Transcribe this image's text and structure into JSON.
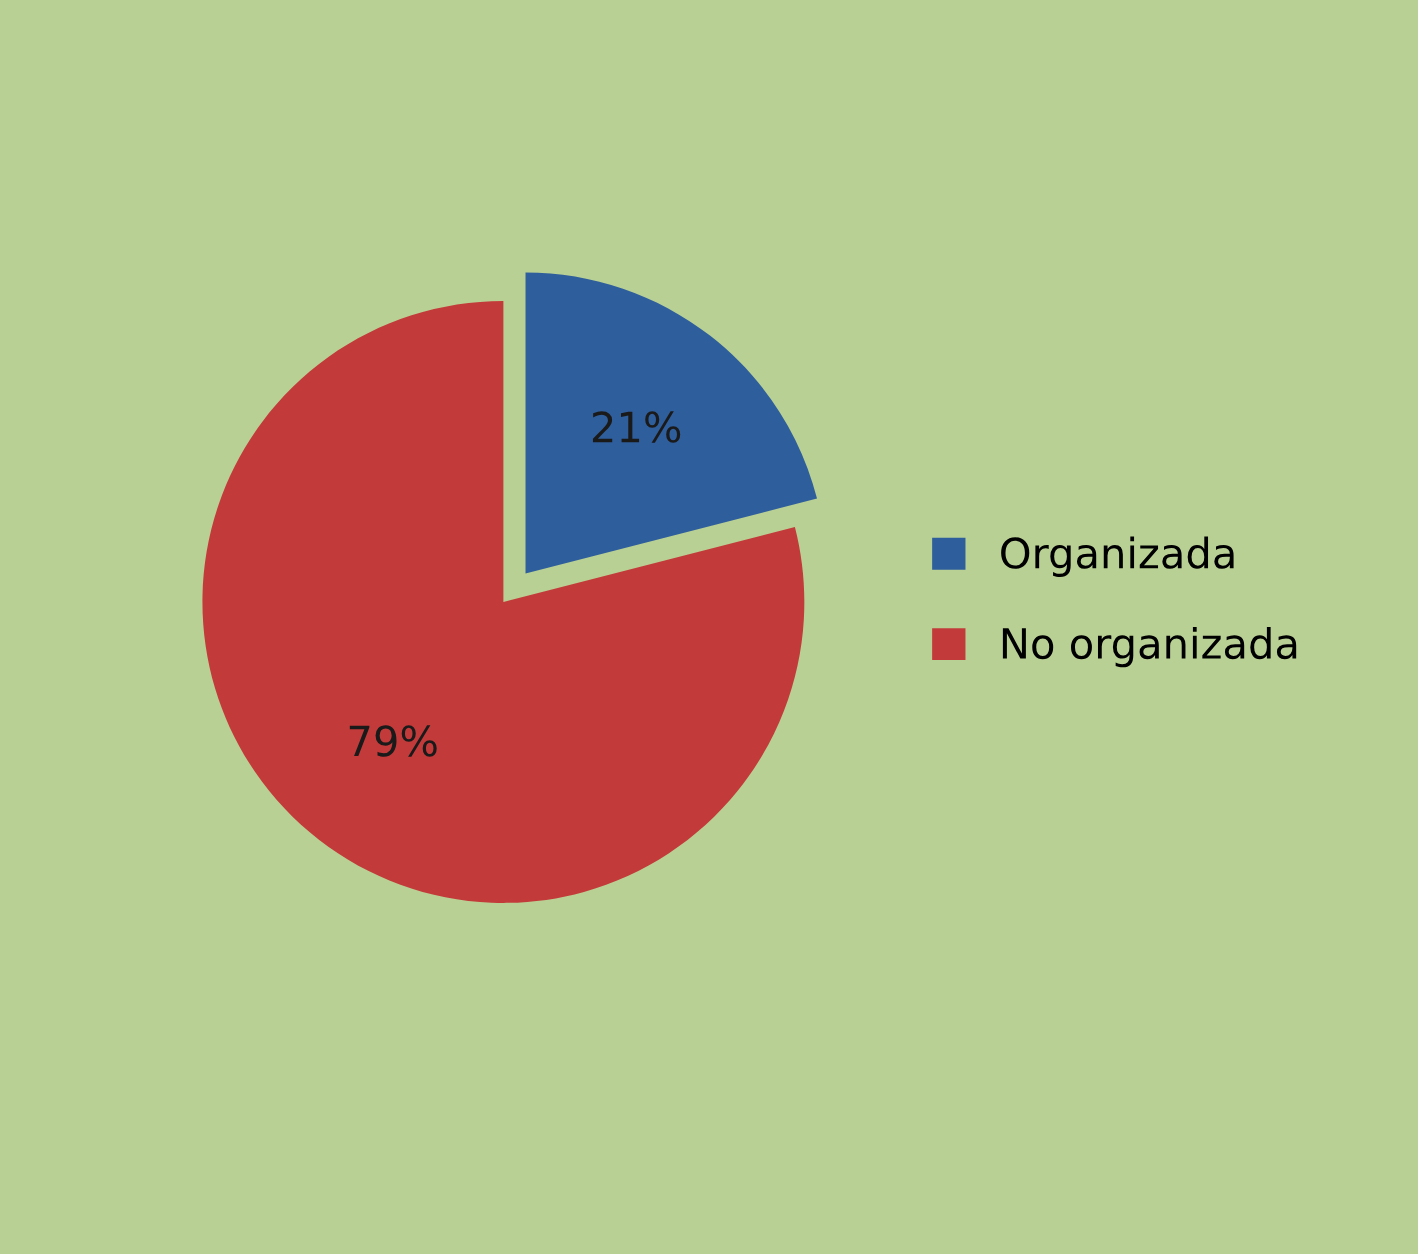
{
  "chart_data": {
    "type": "pie",
    "categories": [
      "Organizada",
      "No organizada"
    ],
    "values": [
      21,
      79
    ],
    "colors": [
      "#2f5e9c",
      "#c23b3a"
    ],
    "value_labels": [
      "21%",
      "79%"
    ],
    "legend": "right"
  }
}
